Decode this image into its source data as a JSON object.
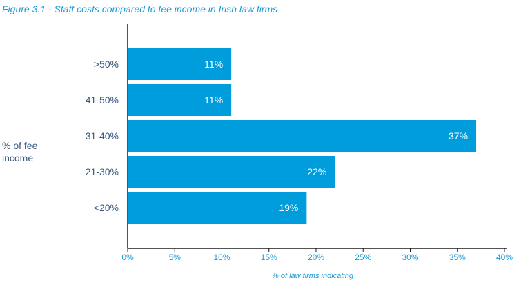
{
  "colors": {
    "bar": "#009ddc",
    "title": "#1a9ad6",
    "category_text": "#3a5a80",
    "tick_text": "#1a9ad6",
    "axis": "#1a1a1a",
    "bar_label": "#ffffff"
  },
  "chart_data": {
    "type": "bar",
    "orientation": "horizontal",
    "title": "Figure 3.1 - Staff costs compared to fee income in Irish law firms",
    "ylabel": "% of fee income",
    "xlabel": "% of law firms indicating",
    "categories": [
      ">50%",
      "41-50%",
      "31-40%",
      "21-30%",
      "<20%"
    ],
    "values": [
      11,
      11,
      37,
      22,
      19
    ],
    "value_labels": [
      "11%",
      "11%",
      "37%",
      "22%",
      "19%"
    ],
    "xlim": [
      0,
      40
    ],
    "xticks": [
      0,
      5,
      10,
      15,
      20,
      25,
      30,
      35,
      40
    ],
    "xtick_labels": [
      "0%",
      "5%",
      "10%",
      "15%",
      "20%",
      "25%",
      "30%",
      "35%",
      "40%"
    ],
    "grid": false,
    "legend": "none"
  }
}
